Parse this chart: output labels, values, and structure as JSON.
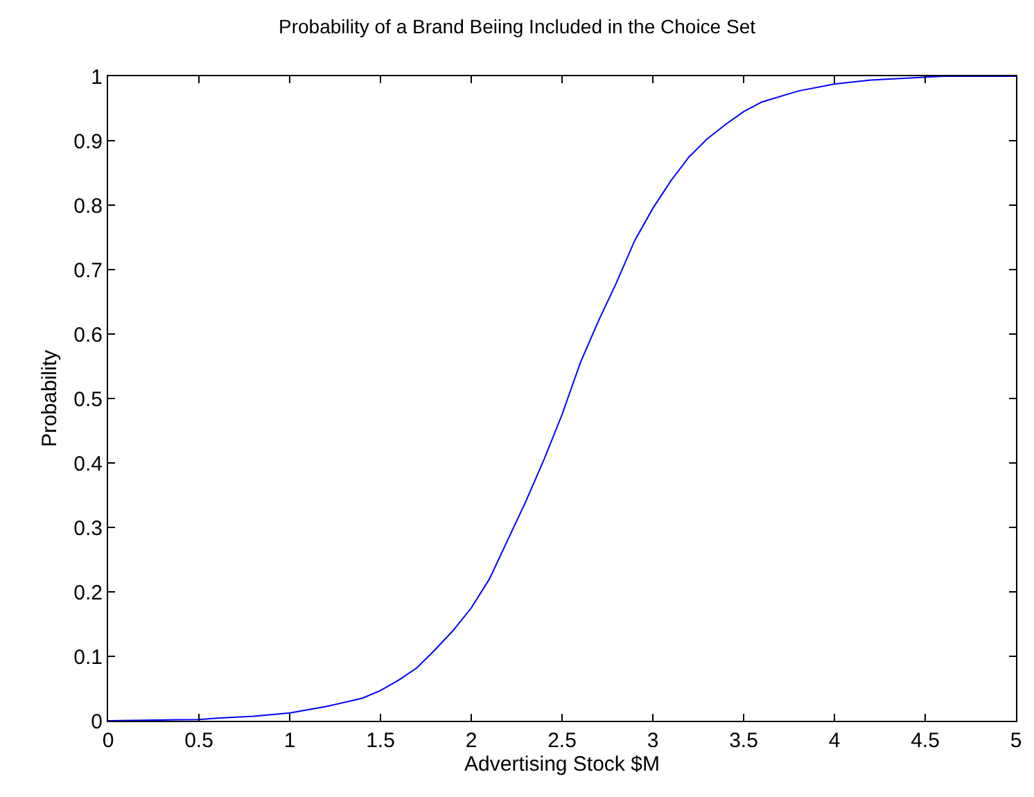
{
  "chart_data": {
    "type": "line",
    "title": "Probability of a Brand Beiing Included in the Choice Set",
    "xlabel": "Advertising Stock $M",
    "ylabel": "Probability",
    "x": [
      0,
      0.5,
      0.6,
      0.8,
      1.0,
      1.2,
      1.4,
      1.5,
      1.6,
      1.7,
      1.8,
      1.9,
      2.0,
      2.1,
      2.2,
      2.3,
      2.4,
      2.5,
      2.6,
      2.7,
      2.8,
      2.9,
      3.0,
      3.1,
      3.2,
      3.3,
      3.4,
      3.5,
      3.6,
      3.8,
      4.0,
      4.2,
      4.4,
      4.6,
      5.0
    ],
    "series": [
      {
        "color": "#0000ff",
        "values": [
          0,
          0.002,
          0.004,
          0.007,
          0.012,
          0.022,
          0.035,
          0.047,
          0.063,
          0.082,
          0.11,
          0.14,
          0.175,
          0.22,
          0.28,
          0.34,
          0.405,
          0.475,
          0.555,
          0.62,
          0.68,
          0.745,
          0.795,
          0.838,
          0.875,
          0.903,
          0.925,
          0.945,
          0.96,
          0.977,
          0.988,
          0.994,
          0.997,
          1.0,
          1.0
        ]
      }
    ],
    "xlim": [
      0,
      5
    ],
    "xticks": [
      0,
      0.5,
      1,
      1.5,
      2,
      2.5,
      3,
      3.5,
      4,
      4.5,
      5
    ],
    "ylim": [
      0,
      1
    ],
    "yticks": [
      0,
      0.1,
      0.2,
      0.3,
      0.4,
      0.5,
      0.6,
      0.7,
      0.8,
      0.9,
      1
    ],
    "marker": "none",
    "line_style": "solid"
  }
}
